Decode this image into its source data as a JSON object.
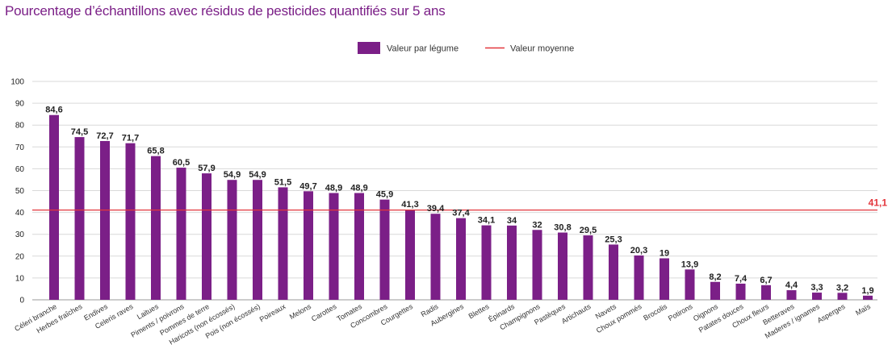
{
  "chart_data": {
    "type": "bar",
    "title": "Pourcentage d’échantillons avec résidus de pesticides quantifiés sur 5 ans",
    "categories": [
      "Céleri branche",
      "Herbes fraîches",
      "Endives",
      "Celeris raves",
      "Laitues",
      "Piments / poivrons",
      "Pommes de terre",
      "Haricots (non écossés)",
      "Pois (non écossés)",
      "Poireaux",
      "Melons",
      "Carottes",
      "Tomates",
      "Concombres",
      "Courgettes",
      "Radis",
      "Aubergines",
      "Blettes",
      "Épinards",
      "Champignons",
      "Pastèques",
      "Artichauts",
      "Navets",
      "Choux pommés",
      "Brocolis",
      "Potirons",
      "Oignons",
      "Patates douces",
      "Choux fleurs",
      "Betteraves",
      "Maderes / ignames",
      "Asperges",
      "Maïs"
    ],
    "series": [
      {
        "name": "Valeur par légume",
        "values": [
          84.6,
          74.5,
          72.7,
          71.7,
          65.8,
          60.5,
          57.9,
          54.9,
          54.9,
          51.5,
          49.7,
          48.9,
          48.9,
          45.9,
          41.3,
          39.4,
          37.4,
          34.1,
          34,
          32,
          30.8,
          29.5,
          25.3,
          20.3,
          19,
          13.9,
          8.2,
          7.4,
          6.7,
          4.4,
          3.3,
          3.2,
          1.9
        ]
      }
    ],
    "value_labels": [
      "84,6",
      "74,5",
      "72,7",
      "71,7",
      "65,8",
      "60,5",
      "57,9",
      "54,9",
      "54,9",
      "51,5",
      "49,7",
      "48,9",
      "48,9",
      "45,9",
      "41,3",
      "39,4",
      "37,4",
      "34,1",
      "34",
      "32",
      "30,8",
      "29,5",
      "25,3",
      "20,3",
      "19",
      "13,9",
      "8,2",
      "7,4",
      "6,7",
      "4,4",
      "3,3",
      "3,2",
      "1,9"
    ],
    "mean": {
      "name": "Valeur moyenne",
      "value": 41.1,
      "label": "41,1"
    },
    "ylim": [
      0,
      100
    ],
    "yticks": [
      "0",
      "10",
      "20",
      "30",
      "40",
      "50",
      "60",
      "70",
      "80",
      "90",
      "100"
    ],
    "grid": true,
    "legend_position": "top-center",
    "colors": {
      "bar": "#7b1f87",
      "mean": "#e3363c",
      "grid": "#d9d9d9"
    }
  }
}
